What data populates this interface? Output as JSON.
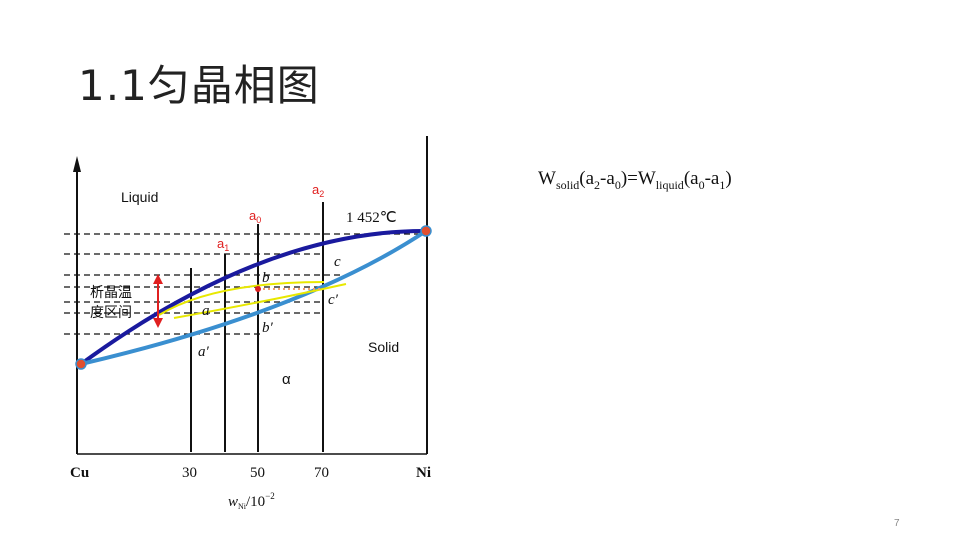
{
  "slide": {
    "title": "1.1匀晶相图",
    "page_number": "7"
  },
  "diagram": {
    "region_liquid": "Liquid",
    "region_solid": "Solid",
    "phase_alpha": "α",
    "melting_point_ni": "1 452℃",
    "interval_label_line1": "析晶温",
    "interval_label_line2": "度区间",
    "axis_left_element": "Cu",
    "axis_right_element": "Ni",
    "x_ticks": [
      "30",
      "50",
      "70"
    ],
    "x_axis_label": "w",
    "x_axis_label_sub": "Ni",
    "x_axis_label_unit": "/10",
    "x_axis_label_exp": "−2",
    "markers": {
      "a0": "a",
      "a0_sub": "0",
      "a1": "a",
      "a1_sub": "1",
      "a2": "a",
      "a2_sub": "2"
    },
    "points": {
      "a": "a",
      "a_prime": "a′",
      "b": "b",
      "b_prime": "b′",
      "c": "c",
      "c_prime": "c′"
    },
    "colors": {
      "liquidus": "#1a1a9e",
      "solidus": "#3a8fd0",
      "tie_line": "#e8e800",
      "marker": "#e02020",
      "dashed_tie": "#f0a070"
    }
  },
  "formula": {
    "w1": "W",
    "w1_sub": "solid",
    "p1": "(a",
    "s1": "2",
    "m1": "-a",
    "s2": "0",
    "close1": ")=",
    "w2": "W",
    "w2_sub": "liquid",
    "p2": "(a",
    "s3": "0",
    "m2": "-a",
    "s4": "1",
    "close2": ")"
  }
}
